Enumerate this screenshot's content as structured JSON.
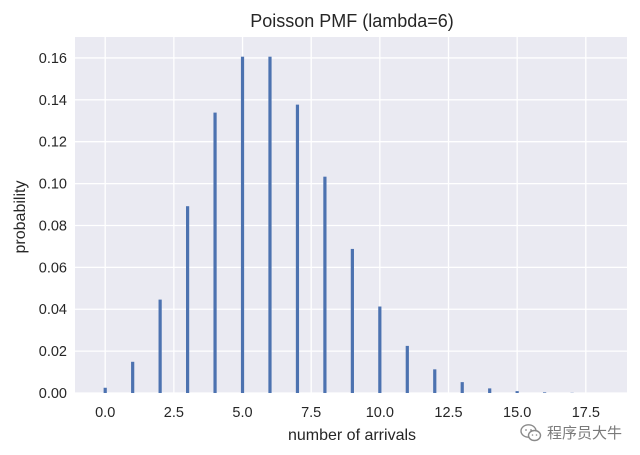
{
  "chart_data": {
    "type": "bar",
    "title": "Poisson PMF (lambda=6)",
    "xlabel": "number of arrivals",
    "ylabel": "probability",
    "x": [
      0,
      1,
      2,
      3,
      4,
      5,
      6,
      7,
      8,
      9,
      10,
      11,
      12,
      13,
      14,
      15,
      16,
      17,
      18
    ],
    "values": [
      0.0025,
      0.0149,
      0.0446,
      0.0892,
      0.1339,
      0.1606,
      0.1606,
      0.1377,
      0.1033,
      0.0688,
      0.0413,
      0.0225,
      0.0113,
      0.0052,
      0.0022,
      0.0009,
      0.0003,
      0.0001,
      0.0
    ],
    "xlim": [
      -1.1,
      19.0
    ],
    "ylim": [
      0,
      0.17
    ],
    "xticks": [
      0.0,
      2.5,
      5.0,
      7.5,
      10.0,
      12.5,
      15.0,
      17.5
    ],
    "xtick_labels": [
      "0.0",
      "2.5",
      "5.0",
      "7.5",
      "10.0",
      "12.5",
      "15.0",
      "17.5"
    ],
    "yticks": [
      0.0,
      0.02,
      0.04,
      0.06,
      0.08,
      0.1,
      0.12,
      0.14,
      0.16
    ],
    "ytick_labels": [
      "0.00",
      "0.02",
      "0.04",
      "0.06",
      "0.08",
      "0.10",
      "0.12",
      "0.14",
      "0.16"
    ],
    "grid": true,
    "bar_color": "#4c72b0",
    "background_color": "#eaeaf2"
  },
  "watermark": {
    "text": "程序员大牛",
    "icon": "wechat-icon"
  }
}
